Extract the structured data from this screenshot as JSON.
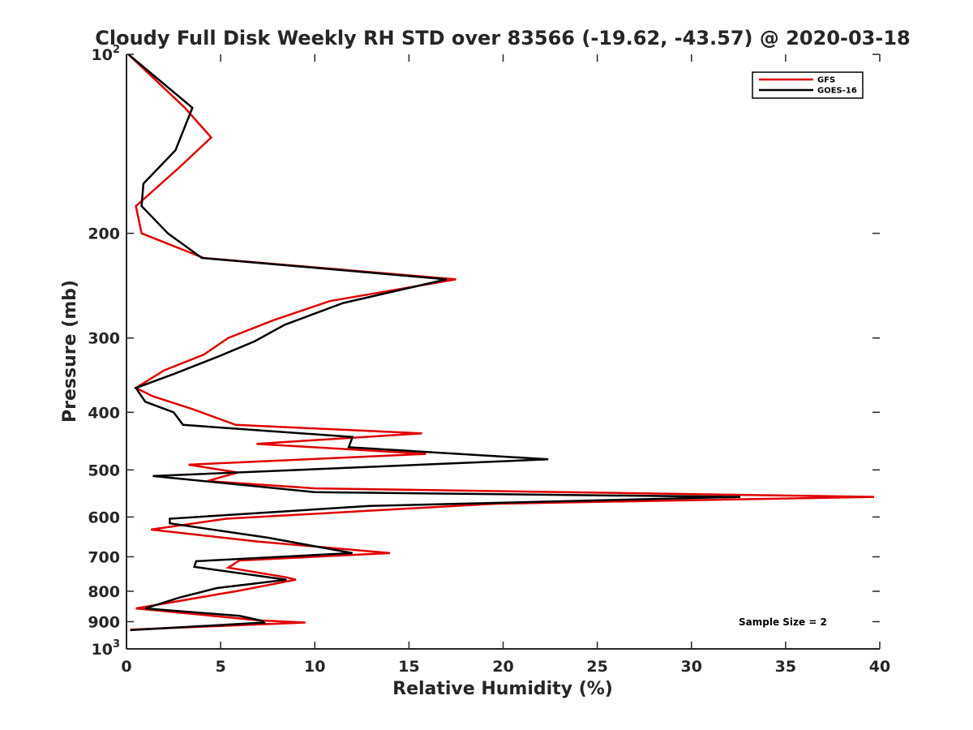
{
  "chart_data": {
    "type": "line",
    "title": "Cloudy Full Disk Weekly RH STD over 83566 (-19.62, -43.57) @ 2020-03-18",
    "xlabel": "Relative Humidity (%)",
    "ylabel": "Pressure (mb)",
    "xlim": [
      0,
      40
    ],
    "ylim": [
      100,
      1000
    ],
    "yscale": "log",
    "y_reversed": true,
    "grid": false,
    "legend_position": "top-right",
    "x_ticks": [
      "0",
      "5",
      "10",
      "15",
      "20",
      "25",
      "30",
      "35",
      "40"
    ],
    "y_ticks": [
      {
        "value": 100,
        "base": "10",
        "exp": "2"
      },
      {
        "value": 200,
        "label": "200"
      },
      {
        "value": 300,
        "label": "300"
      },
      {
        "value": 400,
        "label": "400"
      },
      {
        "value": 500,
        "label": "500"
      },
      {
        "value": 600,
        "label": "600"
      },
      {
        "value": 700,
        "label": "700"
      },
      {
        "value": 800,
        "label": "800"
      },
      {
        "value": 900,
        "label": "900"
      },
      {
        "value": 1000,
        "base": "10",
        "exp": "3"
      }
    ],
    "annotation": "Sample Size = 2",
    "series": [
      {
        "name": "GFS",
        "color": "#e00000",
        "points": [
          [
            0.1,
            100
          ],
          [
            3.1,
            123
          ],
          [
            4.5,
            138
          ],
          [
            2.8,
            155
          ],
          [
            0.5,
            180
          ],
          [
            0.8,
            200
          ],
          [
            4.1,
            220
          ],
          [
            17.5,
            239
          ],
          [
            10.8,
            260
          ],
          [
            7.8,
            280
          ],
          [
            5.4,
            300
          ],
          [
            4.1,
            320
          ],
          [
            2.0,
            340
          ],
          [
            0.5,
            364
          ],
          [
            1.4,
            376
          ],
          [
            3.5,
            395
          ],
          [
            5.8,
            420
          ],
          [
            15.7,
            434
          ],
          [
            6.9,
            452
          ],
          [
            15.9,
            470
          ],
          [
            3.3,
            490
          ],
          [
            5.9,
            505
          ],
          [
            4.3,
            522
          ],
          [
            10.0,
            537
          ],
          [
            39.7,
            555
          ],
          [
            19.5,
            570
          ],
          [
            5.3,
            604
          ],
          [
            1.3,
            630
          ],
          [
            7.0,
            660
          ],
          [
            14.0,
            690
          ],
          [
            6.0,
            710
          ],
          [
            5.4,
            730
          ],
          [
            8.5,
            758
          ],
          [
            9.0,
            765
          ],
          [
            5.8,
            800
          ],
          [
            4.8,
            810
          ],
          [
            0.5,
            855
          ],
          [
            7.0,
            895
          ],
          [
            9.5,
            903
          ],
          [
            0.2,
            928
          ]
        ]
      },
      {
        "name": "GOES-16",
        "color": "#000000",
        "points": [
          [
            0.1,
            100
          ],
          [
            3.5,
            123
          ],
          [
            2.6,
            145
          ],
          [
            0.9,
            165
          ],
          [
            0.8,
            180
          ],
          [
            2.2,
            200
          ],
          [
            4.0,
            220
          ],
          [
            17.0,
            239
          ],
          [
            11.5,
            262
          ],
          [
            8.4,
            285
          ],
          [
            6.8,
            304
          ],
          [
            4.9,
            322
          ],
          [
            2.5,
            345
          ],
          [
            0.5,
            364
          ],
          [
            1.0,
            384
          ],
          [
            2.5,
            400
          ],
          [
            3.0,
            420
          ],
          [
            12.0,
            440
          ],
          [
            11.8,
            458
          ],
          [
            22.4,
            480
          ],
          [
            1.4,
            512
          ],
          [
            10.0,
            545
          ],
          [
            32.6,
            555
          ],
          [
            12.9,
            575
          ],
          [
            2.3,
            604
          ],
          [
            2.3,
            615
          ],
          [
            7.5,
            650
          ],
          [
            12.0,
            690
          ],
          [
            3.7,
            712
          ],
          [
            3.6,
            728
          ],
          [
            8.5,
            765
          ],
          [
            4.8,
            790
          ],
          [
            2.8,
            820
          ],
          [
            1.0,
            855
          ],
          [
            6.0,
            880
          ],
          [
            7.2,
            897
          ],
          [
            7.3,
            903
          ],
          [
            0.2,
            930
          ]
        ]
      }
    ]
  }
}
